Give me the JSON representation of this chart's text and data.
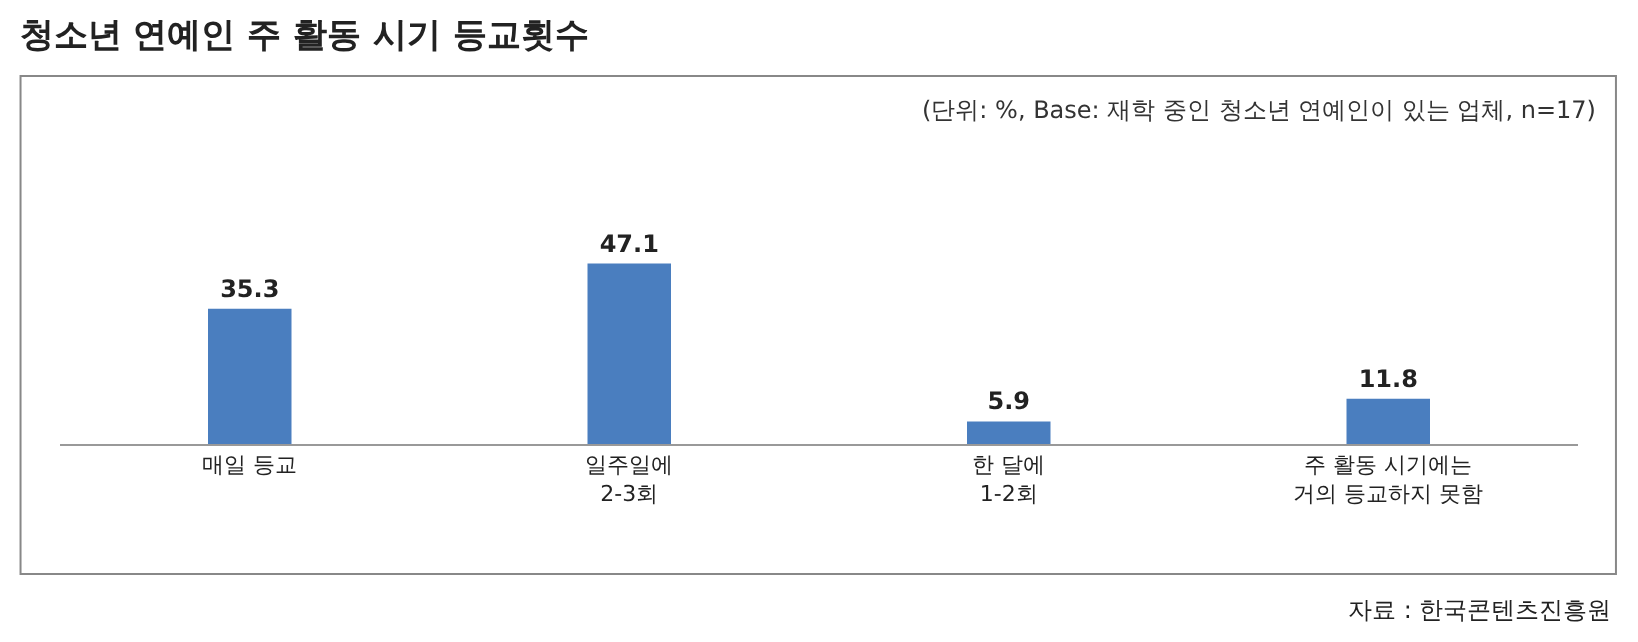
{
  "chart_data": {
    "type": "bar",
    "title": "청소년 연예인 주 활동 시기 등교횟수",
    "subtitle": "(단위: %, Base: 재학 중인 청소년 연예인이 있는 업체, n=17)",
    "categories": [
      "매일 등교",
      "일주일에\n2-3회",
      "한 달에\n1-2회",
      "주 활동 시기에는\n거의 등교하지 못함"
    ],
    "values": [
      35.3,
      47.1,
      5.9,
      11.8
    ],
    "color": "#4a7ebf",
    "data_labels": true,
    "annotations": [
      "자료 : 한국콘텐츠진흥원"
    ]
  }
}
